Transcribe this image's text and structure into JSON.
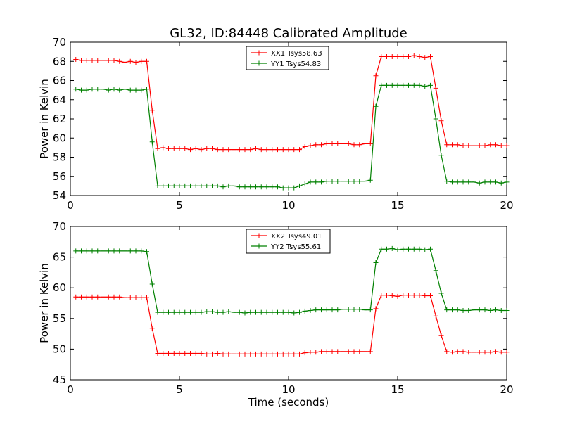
{
  "title": "GL32, ID:84448 Calibrated Amplitude",
  "chart_data": [
    {
      "type": "line",
      "title": "GL32, ID:84448 Calibrated Amplitude",
      "xlabel": "",
      "ylabel": "Power in Kelvin",
      "xlim": [
        0,
        20
      ],
      "ylim": [
        54,
        70
      ],
      "xticks": [
        0,
        5,
        10,
        15,
        20
      ],
      "yticks": [
        54,
        56,
        58,
        60,
        62,
        64,
        66,
        68,
        70
      ],
      "grid": false,
      "legend_position": "upper-center",
      "series": [
        {
          "name": "XX1 Tsys58.63",
          "color": "#ff0000",
          "x": [
            0.25,
            0.5,
            0.75,
            1.0,
            1.25,
            1.5,
            1.75,
            2.0,
            2.25,
            2.5,
            2.75,
            3.0,
            3.25,
            3.5,
            3.75,
            4.0,
            4.25,
            4.5,
            4.75,
            5.0,
            5.25,
            5.5,
            5.75,
            6.0,
            6.25,
            6.5,
            6.75,
            7.0,
            7.25,
            7.5,
            7.75,
            8.0,
            8.25,
            8.5,
            8.75,
            9.0,
            9.25,
            9.5,
            9.75,
            10.0,
            10.25,
            10.5,
            10.75,
            11.0,
            11.25,
            11.5,
            11.75,
            12.0,
            12.25,
            12.5,
            12.75,
            13.0,
            13.25,
            13.5,
            13.75,
            14.0,
            14.25,
            14.5,
            14.75,
            15.0,
            15.25,
            15.5,
            15.75,
            16.0,
            16.25,
            16.5,
            16.75,
            17.0,
            17.25,
            17.5,
            17.75,
            18.0,
            18.25,
            18.5,
            18.75,
            19.0,
            19.25,
            19.5,
            19.75,
            20.0
          ],
          "values": [
            68.2,
            68.1,
            68.1,
            68.1,
            68.1,
            68.1,
            68.1,
            68.1,
            68.0,
            67.9,
            68.0,
            67.9,
            68.0,
            68.0,
            62.9,
            58.9,
            59.0,
            58.9,
            58.9,
            58.9,
            58.9,
            58.8,
            58.9,
            58.8,
            58.9,
            58.9,
            58.8,
            58.8,
            58.8,
            58.8,
            58.8,
            58.8,
            58.8,
            58.9,
            58.8,
            58.8,
            58.8,
            58.8,
            58.8,
            58.8,
            58.8,
            58.8,
            59.1,
            59.2,
            59.3,
            59.3,
            59.4,
            59.4,
            59.4,
            59.4,
            59.4,
            59.3,
            59.3,
            59.4,
            59.4,
            66.5,
            68.5,
            68.5,
            68.5,
            68.5,
            68.5,
            68.5,
            68.6,
            68.5,
            68.4,
            68.5,
            65.2,
            61.8,
            59.3,
            59.3,
            59.3,
            59.2,
            59.2,
            59.2,
            59.2,
            59.2,
            59.3,
            59.3,
            59.2,
            59.2
          ]
        },
        {
          "name": "YY1 Tsys54.83",
          "color": "#008000",
          "x": [
            0.25,
            0.5,
            0.75,
            1.0,
            1.25,
            1.5,
            1.75,
            2.0,
            2.25,
            2.5,
            2.75,
            3.0,
            3.25,
            3.5,
            3.75,
            4.0,
            4.25,
            4.5,
            4.75,
            5.0,
            5.25,
            5.5,
            5.75,
            6.0,
            6.25,
            6.5,
            6.75,
            7.0,
            7.25,
            7.5,
            7.75,
            8.0,
            8.25,
            8.5,
            8.75,
            9.0,
            9.25,
            9.5,
            9.75,
            10.0,
            10.25,
            10.5,
            10.75,
            11.0,
            11.25,
            11.5,
            11.75,
            12.0,
            12.25,
            12.5,
            12.75,
            13.0,
            13.25,
            13.5,
            13.75,
            14.0,
            14.25,
            14.5,
            14.75,
            15.0,
            15.25,
            15.5,
            15.75,
            16.0,
            16.25,
            16.5,
            16.75,
            17.0,
            17.25,
            17.5,
            17.75,
            18.0,
            18.25,
            18.5,
            18.75,
            19.0,
            19.25,
            19.5,
            19.75,
            20.0
          ],
          "values": [
            65.1,
            65.0,
            65.0,
            65.1,
            65.1,
            65.1,
            65.0,
            65.1,
            65.0,
            65.1,
            65.0,
            65.0,
            65.0,
            65.1,
            59.6,
            55.0,
            55.0,
            55.0,
            55.0,
            55.0,
            55.0,
            55.0,
            55.0,
            55.0,
            55.0,
            55.0,
            55.0,
            54.9,
            55.0,
            55.0,
            54.9,
            54.9,
            54.9,
            54.9,
            54.9,
            54.9,
            54.9,
            54.9,
            54.8,
            54.8,
            54.8,
            55.0,
            55.2,
            55.4,
            55.4,
            55.4,
            55.5,
            55.5,
            55.5,
            55.5,
            55.5,
            55.5,
            55.5,
            55.5,
            55.6,
            63.3,
            65.5,
            65.5,
            65.5,
            65.5,
            65.5,
            65.5,
            65.5,
            65.5,
            65.4,
            65.5,
            62.0,
            58.2,
            55.5,
            55.4,
            55.4,
            55.4,
            55.4,
            55.4,
            55.3,
            55.4,
            55.4,
            55.4,
            55.3,
            55.4
          ]
        }
      ]
    },
    {
      "type": "line",
      "title": "",
      "xlabel": "Time (seconds)",
      "ylabel": "Power in Kelvin",
      "xlim": [
        0,
        20
      ],
      "ylim": [
        45,
        70
      ],
      "xticks": [
        0,
        5,
        10,
        15,
        20
      ],
      "yticks": [
        45,
        50,
        55,
        60,
        65,
        70
      ],
      "grid": false,
      "legend_position": "upper-center",
      "series": [
        {
          "name": "XX2 Tsys49.01",
          "color": "#ff0000",
          "x": [
            0.25,
            0.5,
            0.75,
            1.0,
            1.25,
            1.5,
            1.75,
            2.0,
            2.25,
            2.5,
            2.75,
            3.0,
            3.25,
            3.5,
            3.75,
            4.0,
            4.25,
            4.5,
            4.75,
            5.0,
            5.25,
            5.5,
            5.75,
            6.0,
            6.25,
            6.5,
            6.75,
            7.0,
            7.25,
            7.5,
            7.75,
            8.0,
            8.25,
            8.5,
            8.75,
            9.0,
            9.25,
            9.5,
            9.75,
            10.0,
            10.25,
            10.5,
            10.75,
            11.0,
            11.25,
            11.5,
            11.75,
            12.0,
            12.25,
            12.5,
            12.75,
            13.0,
            13.25,
            13.5,
            13.75,
            14.0,
            14.25,
            14.5,
            14.75,
            15.0,
            15.25,
            15.5,
            15.75,
            16.0,
            16.25,
            16.5,
            16.75,
            17.0,
            17.25,
            17.5,
            17.75,
            18.0,
            18.25,
            18.5,
            18.75,
            19.0,
            19.25,
            19.5,
            19.75,
            20.0
          ],
          "values": [
            58.5,
            58.5,
            58.5,
            58.5,
            58.5,
            58.5,
            58.5,
            58.5,
            58.5,
            58.4,
            58.4,
            58.4,
            58.4,
            58.4,
            53.4,
            49.3,
            49.3,
            49.3,
            49.3,
            49.3,
            49.3,
            49.3,
            49.3,
            49.3,
            49.2,
            49.2,
            49.3,
            49.2,
            49.2,
            49.2,
            49.2,
            49.2,
            49.2,
            49.2,
            49.2,
            49.2,
            49.2,
            49.2,
            49.2,
            49.2,
            49.2,
            49.2,
            49.4,
            49.5,
            49.5,
            49.6,
            49.6,
            49.6,
            49.6,
            49.6,
            49.6,
            49.6,
            49.6,
            49.6,
            49.6,
            56.6,
            58.8,
            58.8,
            58.7,
            58.6,
            58.8,
            58.8,
            58.8,
            58.8,
            58.7,
            58.7,
            55.4,
            52.2,
            49.6,
            49.5,
            49.6,
            49.6,
            49.5,
            49.5,
            49.5,
            49.5,
            49.5,
            49.6,
            49.5,
            49.5
          ]
        },
        {
          "name": "YY2 Tsys55.61",
          "color": "#008000",
          "x": [
            0.25,
            0.5,
            0.75,
            1.0,
            1.25,
            1.5,
            1.75,
            2.0,
            2.25,
            2.5,
            2.75,
            3.0,
            3.25,
            3.5,
            3.75,
            4.0,
            4.25,
            4.5,
            4.75,
            5.0,
            5.25,
            5.5,
            5.75,
            6.0,
            6.25,
            6.5,
            6.75,
            7.0,
            7.25,
            7.5,
            7.75,
            8.0,
            8.25,
            8.5,
            8.75,
            9.0,
            9.25,
            9.5,
            9.75,
            10.0,
            10.25,
            10.5,
            10.75,
            11.0,
            11.25,
            11.5,
            11.75,
            12.0,
            12.25,
            12.5,
            12.75,
            13.0,
            13.25,
            13.5,
            13.75,
            14.0,
            14.25,
            14.5,
            14.75,
            15.0,
            15.25,
            15.5,
            15.75,
            16.0,
            16.25,
            16.5,
            16.75,
            17.0,
            17.25,
            17.5,
            17.75,
            18.0,
            18.25,
            18.5,
            18.75,
            19.0,
            19.25,
            19.5,
            19.75,
            20.0
          ],
          "values": [
            66.0,
            66.0,
            66.0,
            66.0,
            66.0,
            66.0,
            66.0,
            66.0,
            66.0,
            66.0,
            66.0,
            66.0,
            66.0,
            65.9,
            60.6,
            56.0,
            56.0,
            56.0,
            56.0,
            56.0,
            56.0,
            56.0,
            56.0,
            56.0,
            56.1,
            56.1,
            56.0,
            56.0,
            56.1,
            56.0,
            56.0,
            55.9,
            56.0,
            56.0,
            56.0,
            56.0,
            56.0,
            56.0,
            56.0,
            56.0,
            55.9,
            56.0,
            56.2,
            56.3,
            56.4,
            56.4,
            56.4,
            56.4,
            56.4,
            56.5,
            56.5,
            56.5,
            56.5,
            56.4,
            56.4,
            64.1,
            66.3,
            66.3,
            66.4,
            66.2,
            66.3,
            66.3,
            66.3,
            66.3,
            66.2,
            66.3,
            62.8,
            59.1,
            56.4,
            56.4,
            56.4,
            56.3,
            56.3,
            56.4,
            56.4,
            56.4,
            56.3,
            56.4,
            56.3,
            56.3
          ]
        }
      ]
    }
  ]
}
